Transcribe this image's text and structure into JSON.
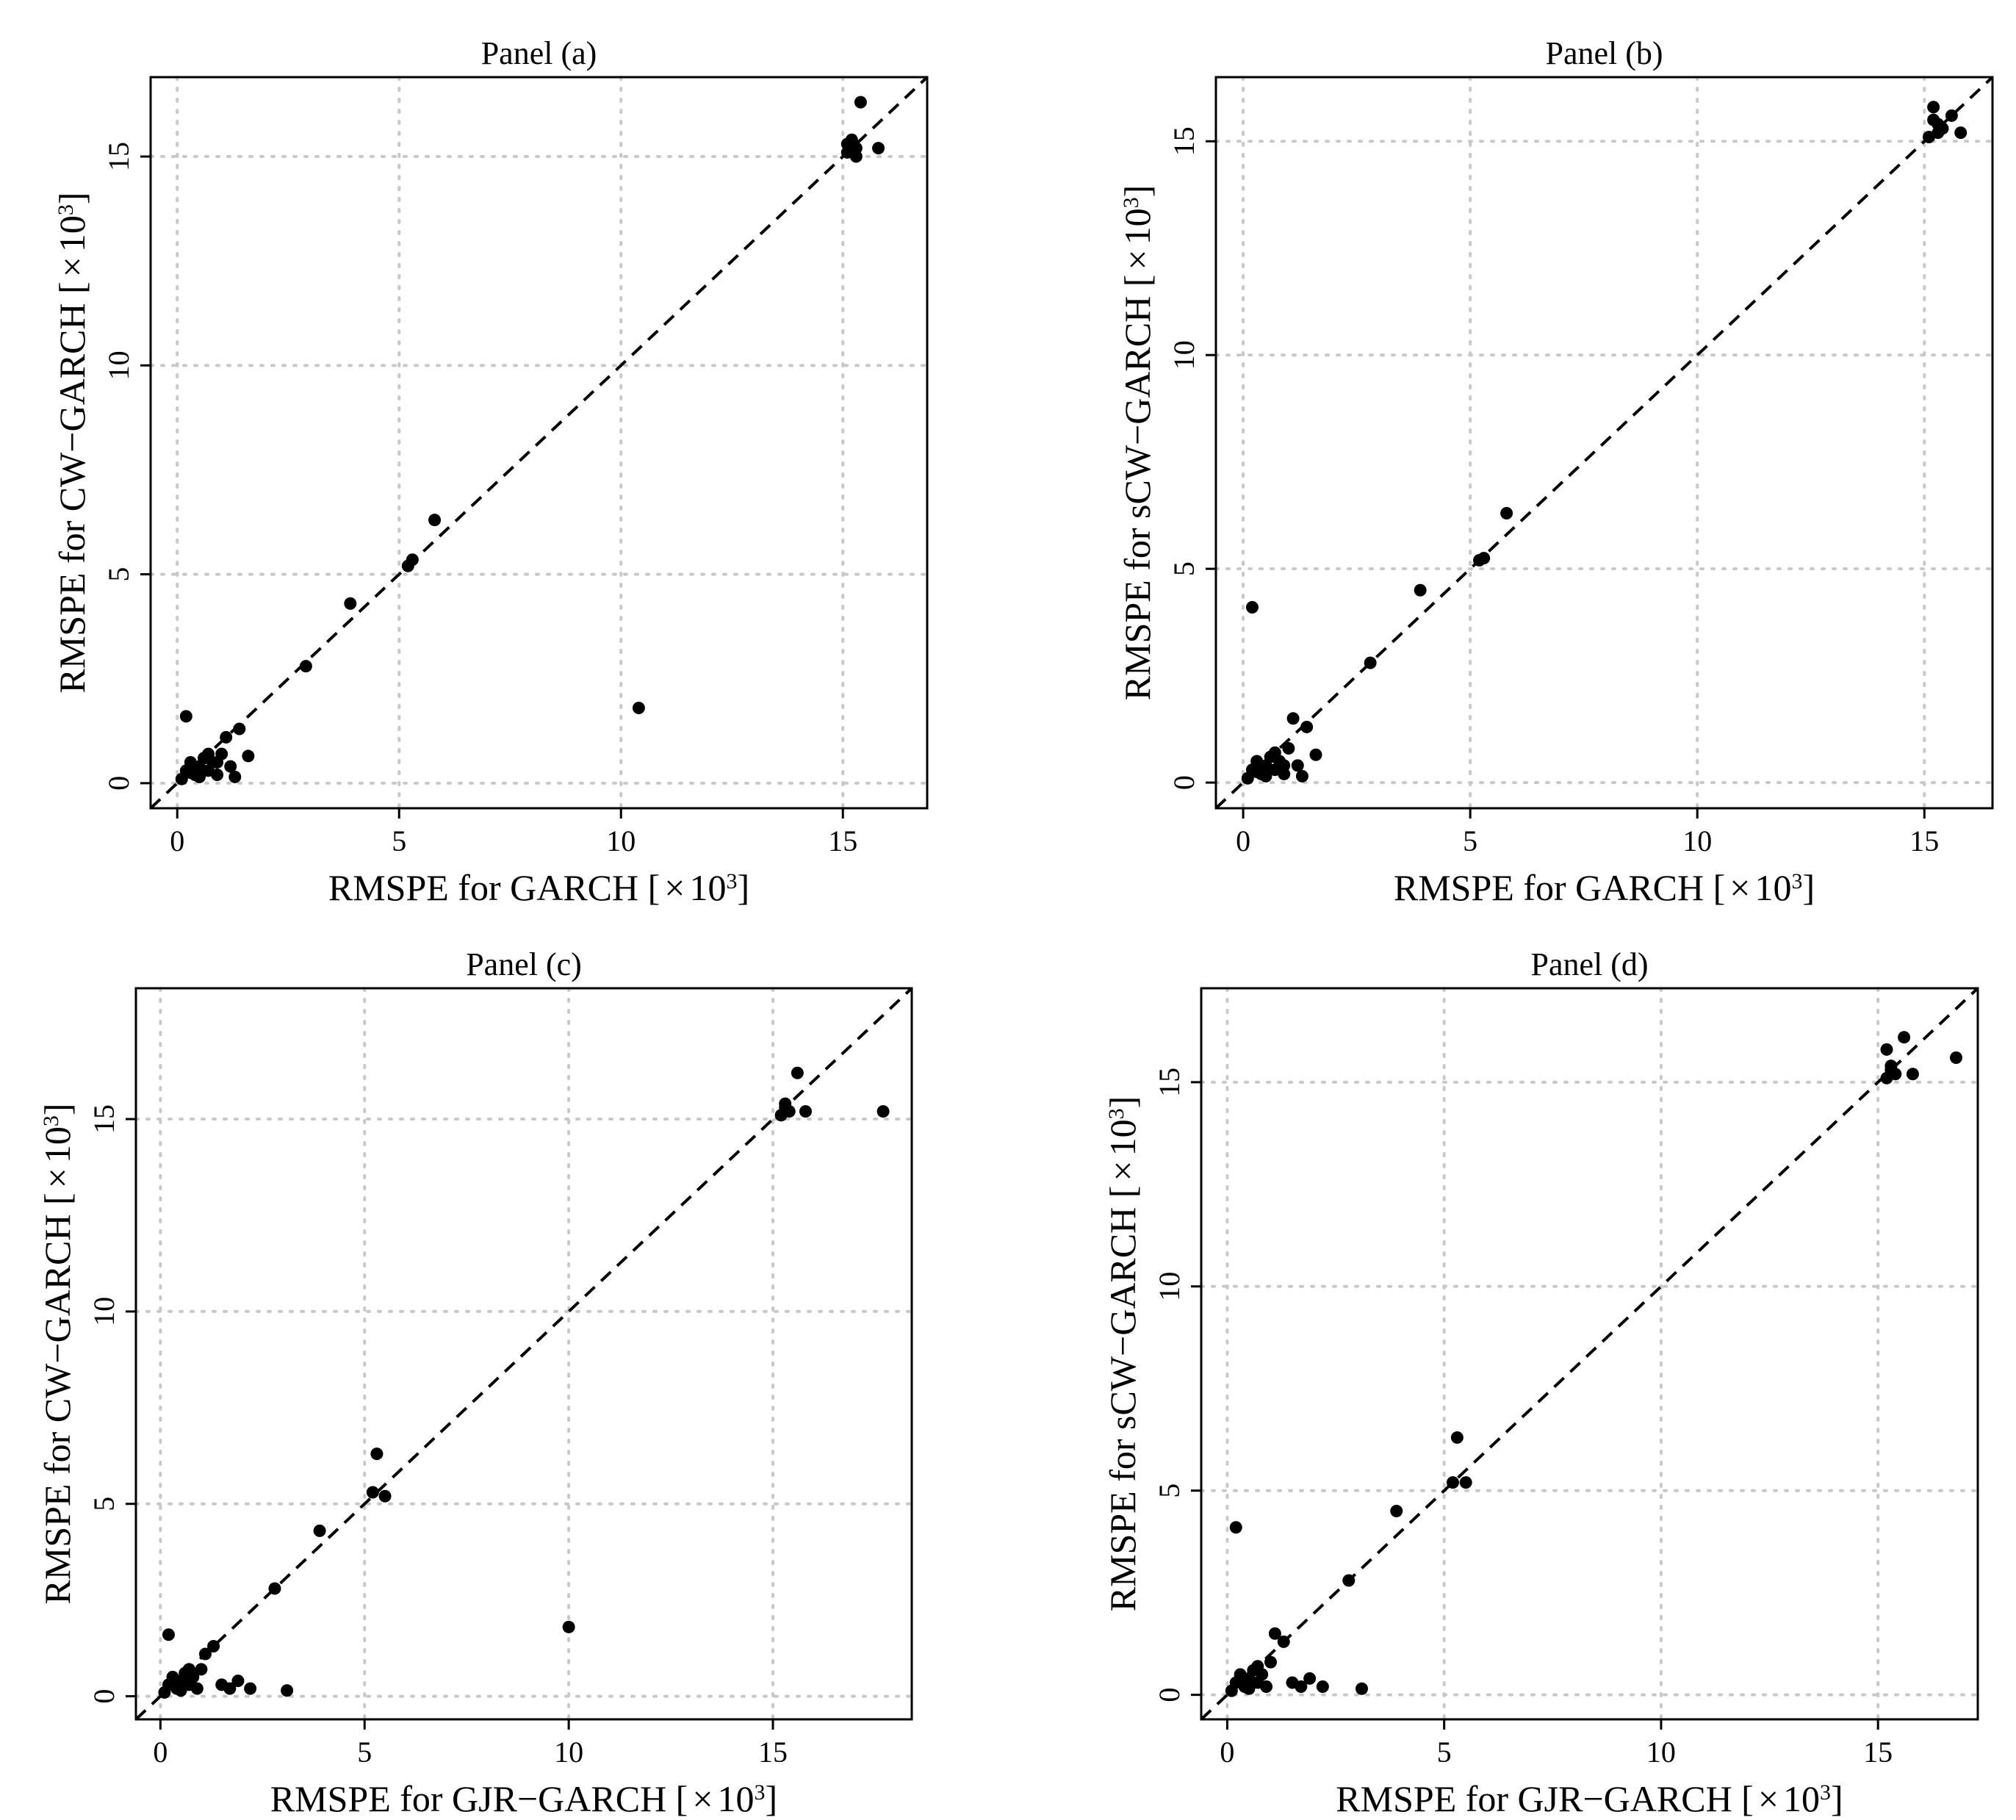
{
  "chart_data": [
    {
      "id": "a",
      "type": "scatter",
      "title": "Panel (a)",
      "xlabel": "RMSPE for GARCH [",
      "ylabel": "RMSPE for CW−GARCH [",
      "unit_times": "×",
      "unit_base": "10",
      "unit_exp": "3",
      "unit_close": "]",
      "xlim": [
        -0.6,
        16.9
      ],
      "ylim": [
        -0.6,
        16.9
      ],
      "xticks": [
        0,
        5,
        10,
        15
      ],
      "yticks": [
        0,
        5,
        10,
        15
      ],
      "grid": true,
      "reference_line": "y = x (dashed)",
      "points": [
        [
          0.2,
          1.6
        ],
        [
          0.1,
          0.1
        ],
        [
          0.2,
          0.3
        ],
        [
          0.3,
          0.5
        ],
        [
          0.4,
          0.2
        ],
        [
          0.5,
          0.4
        ],
        [
          0.6,
          0.6
        ],
        [
          0.7,
          0.3
        ],
        [
          0.8,
          0.5
        ],
        [
          0.9,
          0.2
        ],
        [
          1.0,
          0.7
        ],
        [
          1.1,
          1.1
        ],
        [
          1.2,
          0.4
        ],
        [
          1.3,
          0.15
        ],
        [
          1.4,
          1.3
        ],
        [
          1.6,
          0.65
        ],
        [
          0.5,
          0.15
        ],
        [
          0.3,
          0.25
        ],
        [
          0.7,
          0.7
        ],
        [
          0.9,
          0.5
        ],
        [
          2.9,
          2.8
        ],
        [
          3.9,
          4.3
        ],
        [
          5.2,
          5.2
        ],
        [
          5.3,
          5.35
        ],
        [
          5.8,
          6.3
        ],
        [
          10.4,
          1.8
        ],
        [
          15.1,
          15.1
        ],
        [
          15.2,
          15.3
        ],
        [
          15.3,
          15.2
        ],
        [
          15.4,
          16.3
        ],
        [
          15.8,
          15.2
        ],
        [
          15.2,
          15.4
        ],
        [
          15.3,
          15.0
        ],
        [
          15.1,
          15.3
        ]
      ]
    },
    {
      "id": "b",
      "type": "scatter",
      "title": "Panel (b)",
      "xlabel": "RMSPE for GARCH [",
      "ylabel": "RMSPE for sCW−GARCH [",
      "unit_times": "×",
      "unit_base": "10",
      "unit_exp": "3",
      "unit_close": "]",
      "xlim": [
        -0.6,
        16.5
      ],
      "ylim": [
        -0.6,
        16.5
      ],
      "xticks": [
        0,
        5,
        10,
        15
      ],
      "yticks": [
        0,
        5,
        10,
        15
      ],
      "grid": true,
      "reference_line": "y = x (dashed)",
      "points": [
        [
          0.2,
          4.1
        ],
        [
          0.1,
          0.1
        ],
        [
          0.2,
          0.3
        ],
        [
          0.3,
          0.5
        ],
        [
          0.4,
          0.2
        ],
        [
          0.5,
          0.4
        ],
        [
          0.6,
          0.6
        ],
        [
          0.7,
          0.3
        ],
        [
          0.8,
          0.5
        ],
        [
          0.9,
          0.2
        ],
        [
          1.0,
          0.8
        ],
        [
          1.1,
          1.5
        ],
        [
          1.2,
          0.4
        ],
        [
          1.3,
          0.15
        ],
        [
          1.4,
          1.3
        ],
        [
          1.6,
          0.65
        ],
        [
          0.5,
          0.15
        ],
        [
          0.3,
          0.25
        ],
        [
          0.7,
          0.7
        ],
        [
          0.9,
          0.4
        ],
        [
          2.8,
          2.8
        ],
        [
          3.9,
          4.5
        ],
        [
          5.2,
          5.2
        ],
        [
          5.3,
          5.25
        ],
        [
          5.8,
          6.3
        ],
        [
          15.1,
          15.1
        ],
        [
          15.2,
          15.5
        ],
        [
          15.3,
          15.2
        ],
        [
          15.2,
          15.8
        ],
        [
          15.6,
          15.6
        ],
        [
          15.8,
          15.2
        ],
        [
          15.4,
          15.3
        ],
        [
          15.3,
          15.4
        ]
      ]
    },
    {
      "id": "c",
      "type": "scatter",
      "title": "Panel (c)",
      "xlabel": "RMSPE for GJR−GARCH [",
      "ylabel": "RMSPE for CW−GARCH [",
      "unit_times": "×",
      "unit_base": "10",
      "unit_exp": "3",
      "unit_close": "]",
      "xlim": [
        -0.6,
        18.4
      ],
      "ylim": [
        -0.6,
        18.4
      ],
      "xticks": [
        0,
        5,
        10,
        15
      ],
      "yticks": [
        0,
        5,
        10,
        15
      ],
      "grid": true,
      "reference_line": "y = x (dashed)",
      "points": [
        [
          0.2,
          1.6
        ],
        [
          0.1,
          0.1
        ],
        [
          0.2,
          0.3
        ],
        [
          0.3,
          0.5
        ],
        [
          0.4,
          0.2
        ],
        [
          0.5,
          0.4
        ],
        [
          0.6,
          0.6
        ],
        [
          0.7,
          0.3
        ],
        [
          0.8,
          0.5
        ],
        [
          0.9,
          0.2
        ],
        [
          1.0,
          0.7
        ],
        [
          1.1,
          1.1
        ],
        [
          1.3,
          1.3
        ],
        [
          1.5,
          0.3
        ],
        [
          1.7,
          0.2
        ],
        [
          1.9,
          0.4
        ],
        [
          2.2,
          0.2
        ],
        [
          3.1,
          0.15
        ],
        [
          0.5,
          0.15
        ],
        [
          0.7,
          0.7
        ],
        [
          2.8,
          2.8
        ],
        [
          3.9,
          4.3
        ],
        [
          5.2,
          5.3
        ],
        [
          5.3,
          6.3
        ],
        [
          5.5,
          5.2
        ],
        [
          10.0,
          1.8
        ],
        [
          15.2,
          15.1
        ],
        [
          15.3,
          15.3
        ],
        [
          15.4,
          15.2
        ],
        [
          15.6,
          16.2
        ],
        [
          15.8,
          15.2
        ],
        [
          17.7,
          15.2
        ],
        [
          15.3,
          15.4
        ]
      ]
    },
    {
      "id": "d",
      "type": "scatter",
      "title": "Panel (d)",
      "xlabel": "RMSPE for GJR−GARCH [",
      "ylabel": "RMSPE for sCW−GARCH [",
      "unit_times": "×",
      "unit_base": "10",
      "unit_exp": "3",
      "unit_close": "]",
      "xlim": [
        -0.6,
        17.3
      ],
      "ylim": [
        -0.6,
        17.3
      ],
      "xticks": [
        0,
        5,
        10,
        15
      ],
      "yticks": [
        0,
        5,
        10,
        15
      ],
      "grid": true,
      "reference_line": "y = x (dashed)",
      "points": [
        [
          0.2,
          4.1
        ],
        [
          0.1,
          0.1
        ],
        [
          0.2,
          0.3
        ],
        [
          0.3,
          0.5
        ],
        [
          0.4,
          0.2
        ],
        [
          0.5,
          0.4
        ],
        [
          0.6,
          0.6
        ],
        [
          0.7,
          0.3
        ],
        [
          0.8,
          0.5
        ],
        [
          0.9,
          0.2
        ],
        [
          1.0,
          0.8
        ],
        [
          1.1,
          1.5
        ],
        [
          1.3,
          1.3
        ],
        [
          1.5,
          0.3
        ],
        [
          1.7,
          0.2
        ],
        [
          1.9,
          0.4
        ],
        [
          2.2,
          0.2
        ],
        [
          3.1,
          0.15
        ],
        [
          0.5,
          0.15
        ],
        [
          0.7,
          0.7
        ],
        [
          2.8,
          2.8
        ],
        [
          3.9,
          4.5
        ],
        [
          5.2,
          5.2
        ],
        [
          5.3,
          6.3
        ],
        [
          5.5,
          5.2
        ],
        [
          15.2,
          15.1
        ],
        [
          15.3,
          15.4
        ],
        [
          15.4,
          15.2
        ],
        [
          15.2,
          15.8
        ],
        [
          15.6,
          16.1
        ],
        [
          15.8,
          15.2
        ],
        [
          16.8,
          15.6
        ],
        [
          15.3,
          15.3
        ]
      ]
    }
  ]
}
